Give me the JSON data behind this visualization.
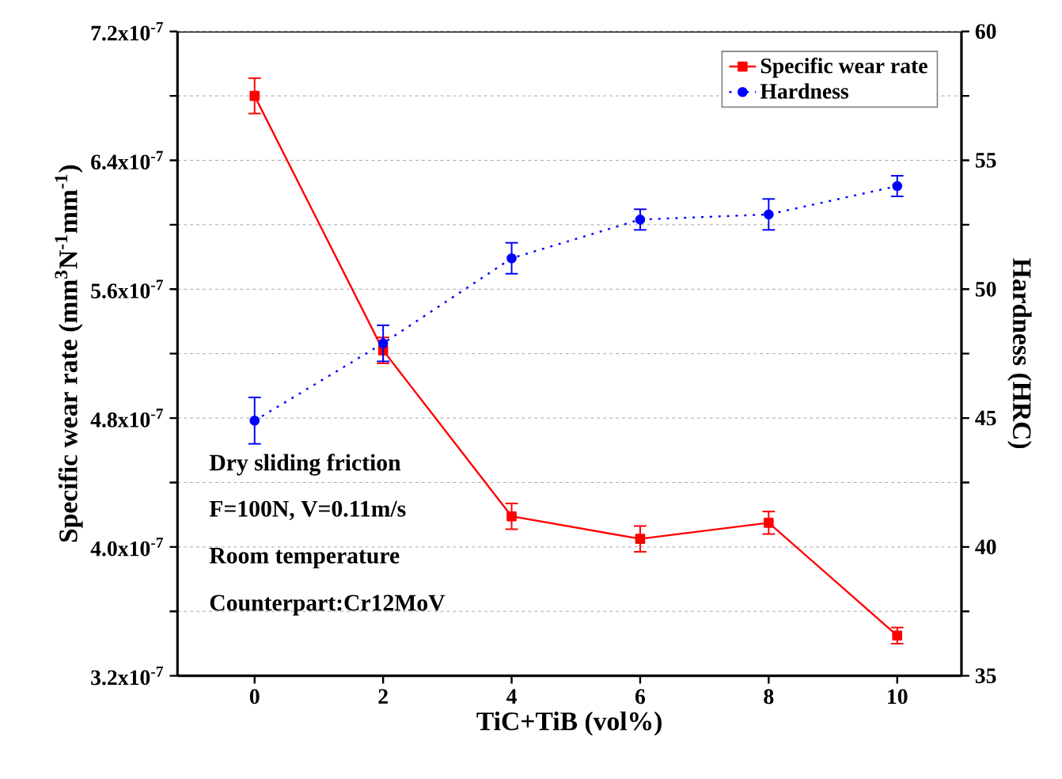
{
  "chart_data": {
    "type": "line",
    "xlabel": "TiC+TiB (vol%)",
    "ylabel": "Specific wear rate (mm$^{3}$N$^{-1}$mm$^{-1}$)",
    "y2label": "Hardness (HRC)",
    "x": [
      0,
      2,
      4,
      6,
      8,
      10
    ],
    "series": [
      {
        "name": "Specific wear rate",
        "color": "#ff0000",
        "marker": "square",
        "line_style": "solid",
        "values": [
          6.8e-07,
          5.22e-07,
          4.19e-07,
          4.05e-07,
          4.15e-07,
          3.45e-07
        ],
        "errors": [
          1.1e-08,
          8e-09,
          8e-09,
          8e-09,
          7e-09,
          5e-09
        ]
      },
      {
        "name": "Hardness",
        "color": "#0000ff",
        "marker": "circle",
        "line_style": "dotted",
        "axis": "y2",
        "values": [
          44.9,
          47.9,
          51.2,
          52.7,
          52.9,
          54.0
        ],
        "errors": [
          0.9,
          0.7,
          0.6,
          0.4,
          0.6,
          0.4
        ]
      }
    ],
    "xlim": [
      -1.2,
      11
    ],
    "xticks": [
      0,
      2,
      4,
      6,
      8,
      10
    ],
    "ylim": [
      3.2e-07,
      7.2e-07
    ],
    "yticks": [
      {
        "value": 3.2e-07,
        "label": "3.2x10$^{-7}$"
      },
      {
        "value": 3.6e-07,
        "label": null
      },
      {
        "value": 4e-07,
        "label": "4.0x10$^{-7}$"
      },
      {
        "value": 4.4e-07,
        "label": null
      },
      {
        "value": 4.8e-07,
        "label": "4.8x10$^{-7}$"
      },
      {
        "value": 5.2e-07,
        "label": null
      },
      {
        "value": 5.6e-07,
        "label": "5.6x10$^{-7}$"
      },
      {
        "value": 6e-07,
        "label": null
      },
      {
        "value": 6.4e-07,
        "label": "6.4x10$^{-7}$"
      },
      {
        "value": 6.8e-07,
        "label": null
      },
      {
        "value": 7.2e-07,
        "label": "7.2x10$^{-7}$"
      }
    ],
    "y2lim": [
      35,
      60
    ],
    "y2ticks": [
      35,
      {
        "value": 37.5,
        "label": null
      },
      40,
      {
        "value": 42.5,
        "label": null
      },
      45,
      {
        "value": 47.5,
        "label": null
      },
      50,
      {
        "value": 52.5,
        "label": null
      },
      55,
      {
        "value": 57.5,
        "label": null
      },
      60
    ],
    "grid": "y",
    "legend": "top right",
    "annotations": [
      "Dry sliding friction",
      "F=100N, V=0.11m/s",
      "Room temperature",
      "Counterpart:Cr12MoV"
    ]
  }
}
